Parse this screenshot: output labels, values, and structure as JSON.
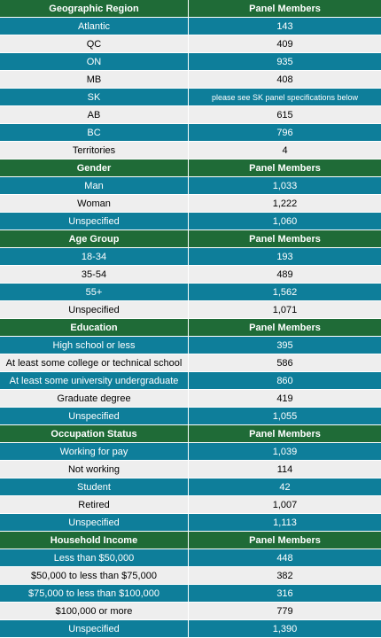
{
  "colors": {
    "header": "#1f6b37",
    "stripe_blue": "#0e7e9a",
    "stripe_light": "#eeeeee"
  },
  "sections": [
    {
      "title": "Geographic Region",
      "value_header": "Panel Members",
      "rows": [
        {
          "label": "Atlantic",
          "value": "143"
        },
        {
          "label": "QC",
          "value": "409"
        },
        {
          "label": "ON",
          "value": "935"
        },
        {
          "label": "MB",
          "value": "408"
        },
        {
          "label": "SK",
          "value": "please see SK panel specifications below"
        },
        {
          "label": "AB",
          "value": "615"
        },
        {
          "label": "BC",
          "value": "796"
        },
        {
          "label": "Territories",
          "value": "4"
        }
      ]
    },
    {
      "title": "Gender",
      "value_header": "Panel Members",
      "rows": [
        {
          "label": "Man",
          "value": "1,033"
        },
        {
          "label": "Woman",
          "value": "1,222"
        },
        {
          "label": "Unspecified",
          "value": "1,060"
        }
      ]
    },
    {
      "title": "Age Group",
      "value_header": "Panel Members",
      "rows": [
        {
          "label": "18-34",
          "value": "193"
        },
        {
          "label": "35-54",
          "value": "489"
        },
        {
          "label": "55+",
          "value": "1,562"
        },
        {
          "label": "Unspecified",
          "value": "1,071"
        }
      ]
    },
    {
      "title": "Education",
      "value_header": "Panel Members",
      "rows": [
        {
          "label": "High school or less",
          "value": "395"
        },
        {
          "label": "At least some college or technical school",
          "value": "586"
        },
        {
          "label": "At least some university undergraduate",
          "value": "860"
        },
        {
          "label": "Graduate degree",
          "value": "419"
        },
        {
          "label": "Unspecified",
          "value": "1,055"
        }
      ]
    },
    {
      "title": "Occupation Status",
      "value_header": "Panel Members",
      "rows": [
        {
          "label": "Working for pay",
          "value": "1,039"
        },
        {
          "label": "Not working",
          "value": "114"
        },
        {
          "label": "Student",
          "value": "42"
        },
        {
          "label": "Retired",
          "value": "1,007"
        },
        {
          "label": "Unspecified",
          "value": "1,113"
        }
      ]
    },
    {
      "title": "Household Income",
      "value_header": "Panel Members",
      "rows": [
        {
          "label": "Less than $50,000",
          "value": "448"
        },
        {
          "label": "$50,000 to less than $75,000",
          "value": "382"
        },
        {
          "label": "$75,000 to less than $100,000",
          "value": "316"
        },
        {
          "label": "$100,000 or more",
          "value": "779"
        },
        {
          "label": "Unspecified",
          "value": "1,390"
        }
      ]
    }
  ]
}
